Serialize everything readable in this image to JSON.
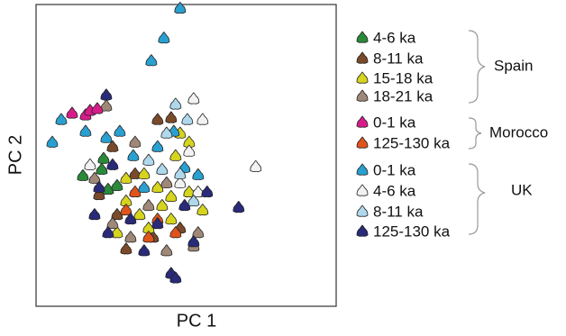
{
  "chart_data": {
    "type": "scatter",
    "x_label": "PC 1",
    "y_label": "PC 2",
    "xlim": [
      0,
      100
    ],
    "ylim": [
      0,
      100
    ],
    "groups": [
      {
        "name": "Spain",
        "series": [
          {
            "name": "4-6 ka",
            "color": "#2a8a3a",
            "x": [
              15.6,
              21.9,
              24,
              27,
              22.5
            ],
            "y": [
              42.9,
              45,
              38.4,
              39.6,
              48.6
            ]
          },
          {
            "name": "8-11 ka",
            "color": "#7a4a2a",
            "x": [
              40.5,
              45,
              25.5,
              33,
              27,
              39,
              30,
              48,
              21
            ],
            "y": [
              61.5,
              62.1,
              52.5,
              43.5,
              30,
              22.5,
              18.6,
              25.5,
              36.6
            ]
          },
          {
            "name": "15-18 ka",
            "color": "#d6d41e",
            "x": [
              48,
              51,
              30,
              36,
              40.5,
              45,
              51,
              55.5,
              30,
              34.5,
              42,
              37.5,
              45,
              27,
              46.5
            ],
            "y": [
              57,
              54,
              42,
              43.5,
              39,
              36,
              37.5,
              31.5,
              34.5,
              30,
              33,
              25.5,
              28.5,
              24,
              49.5
            ]
          },
          {
            "name": "18-21 ka",
            "color": "#a08878",
            "x": [
              23.4,
              33,
              19.5,
              25.5,
              31.5,
              43.5,
              52.5,
              37.5,
              54,
              43.5
            ],
            "y": [
              66,
              54,
              42,
              27,
              22.5,
              18,
              19.5,
              33,
              24,
              40.5
            ]
          }
        ]
      },
      {
        "name": "Morocco",
        "series": [
          {
            "name": "0-1 ka",
            "color": "#d81b8a",
            "x": [
              12,
              16.5,
              18,
              20.4
            ],
            "y": [
              63.6,
              63,
              64.5,
              65.1
            ]
          },
          {
            "name": "125-130 ka",
            "color": "#e0541c",
            "x": [
              33,
              40.5,
              46.5,
              37.5,
              30
            ],
            "y": [
              37.5,
              28.5,
              24,
              22.5,
              31.5
            ]
          }
        ]
      },
      {
        "name": "UK",
        "series": [
          {
            "name": "0-1 ka",
            "color": "#2aa0d0",
            "x": [
              48,
              42.6,
              38.4,
              8.4,
              16.5,
              23.4,
              5.4,
              27.9,
              45.9,
              40.5,
              32.4,
              49.5,
              36,
              54
            ],
            "y": [
              98.4,
              88.5,
              81,
              61.5,
              57.6,
              55.5,
              54,
              57.6,
              57.6,
              52.5,
              49.5,
              45.6,
              39,
              43.2
            ]
          },
          {
            "name": "4-6 ka",
            "color": "#f2f2f2",
            "x": [
              52.5,
              55.5,
              18,
              51,
              54,
              73.2,
              48
            ],
            "y": [
              68.4,
              61.5,
              46.5,
              51,
              37.5,
              45.9,
              40.5
            ]
          },
          {
            "name": "8-11 ka",
            "color": "#b0d8ec",
            "x": [
              46.5,
              50.4,
              43.5,
              37.5,
              48,
              52.5,
              42
            ],
            "y": [
              66.6,
              61.5,
              57,
              48,
              43.5,
              34.5,
              45
            ]
          },
          {
            "name": "125-130 ka",
            "color": "#2a2a7a",
            "x": [
              23.4,
              25.5,
              19.5,
              24,
              40.5,
              45,
              46.5,
              49.5,
              52.5,
              67.5,
              31.5,
              57,
              36,
              21
            ],
            "y": [
              69.6,
              46.5,
              30,
              24,
              27,
              10.5,
              9,
              33,
              21,
              32.4,
              28.5,
              37.5,
              18,
              39
            ]
          }
        ]
      }
    ]
  }
}
